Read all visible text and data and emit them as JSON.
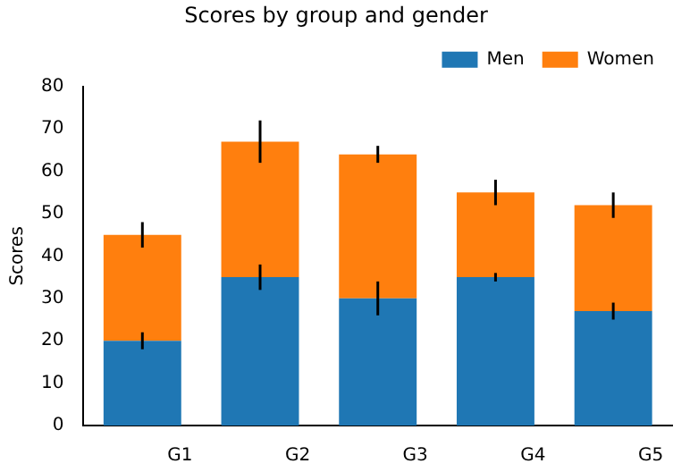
{
  "chart_data": {
    "type": "bar",
    "title": "Scores by group and gender",
    "ylabel": "Scores",
    "categories": [
      "G1",
      "G2",
      "G3",
      "G4",
      "G5"
    ],
    "series": [
      {
        "name": "Men",
        "color": "#1f77b4",
        "values": [
          20,
          35,
          30,
          35,
          27
        ],
        "errors": [
          2,
          3,
          4,
          1,
          2
        ]
      },
      {
        "name": "Women",
        "color": "#ff7f0e",
        "values": [
          25,
          32,
          34,
          20,
          25
        ],
        "errors": [
          3,
          5,
          2,
          3,
          3
        ]
      }
    ],
    "stacked": true,
    "ylim": [
      0,
      80
    ],
    "yticks": [
      0,
      10,
      20,
      30,
      40,
      50,
      60,
      70,
      80
    ],
    "grid": false,
    "legend": "top right"
  }
}
